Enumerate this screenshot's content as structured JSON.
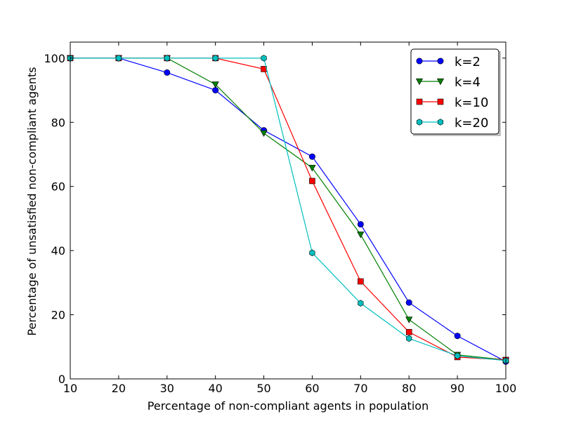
{
  "chart_data": {
    "type": "line",
    "title": "",
    "xlabel": "Percentage of non-compliant agents in population",
    "ylabel": "Percentage of unsatisfied non-compliant agents",
    "xlim": [
      10,
      100
    ],
    "ylim": [
      0,
      105
    ],
    "xticks": [
      10,
      20,
      30,
      40,
      50,
      60,
      70,
      80,
      90,
      100
    ],
    "yticks": [
      0,
      20,
      40,
      60,
      80,
      100
    ],
    "grid": false,
    "legend_position": "top-right",
    "x": [
      10,
      20,
      30,
      40,
      50,
      60,
      70,
      80,
      90,
      100
    ],
    "series": [
      {
        "name": "k=2",
        "color": "#0000ff",
        "marker": "circle",
        "values": [
          100,
          100,
          95.5,
          90.0,
          77.5,
          69.3,
          48.2,
          23.8,
          13.4,
          5.4
        ]
      },
      {
        "name": "k=4",
        "color": "#007f00",
        "marker": "triangle-down",
        "values": [
          100,
          100,
          100,
          91.8,
          76.6,
          65.8,
          45.0,
          18.5,
          7.5,
          5.9
        ]
      },
      {
        "name": "k=10",
        "color": "#ff0000",
        "marker": "square",
        "values": [
          100,
          100,
          100,
          100,
          96.6,
          61.7,
          30.4,
          14.6,
          6.8,
          5.9
        ]
      },
      {
        "name": "k=20",
        "color": "#00bfbf",
        "marker": "hexagon",
        "values": [
          100,
          100,
          100,
          100,
          100,
          39.3,
          23.6,
          12.6,
          7.2,
          5.7
        ]
      }
    ]
  }
}
